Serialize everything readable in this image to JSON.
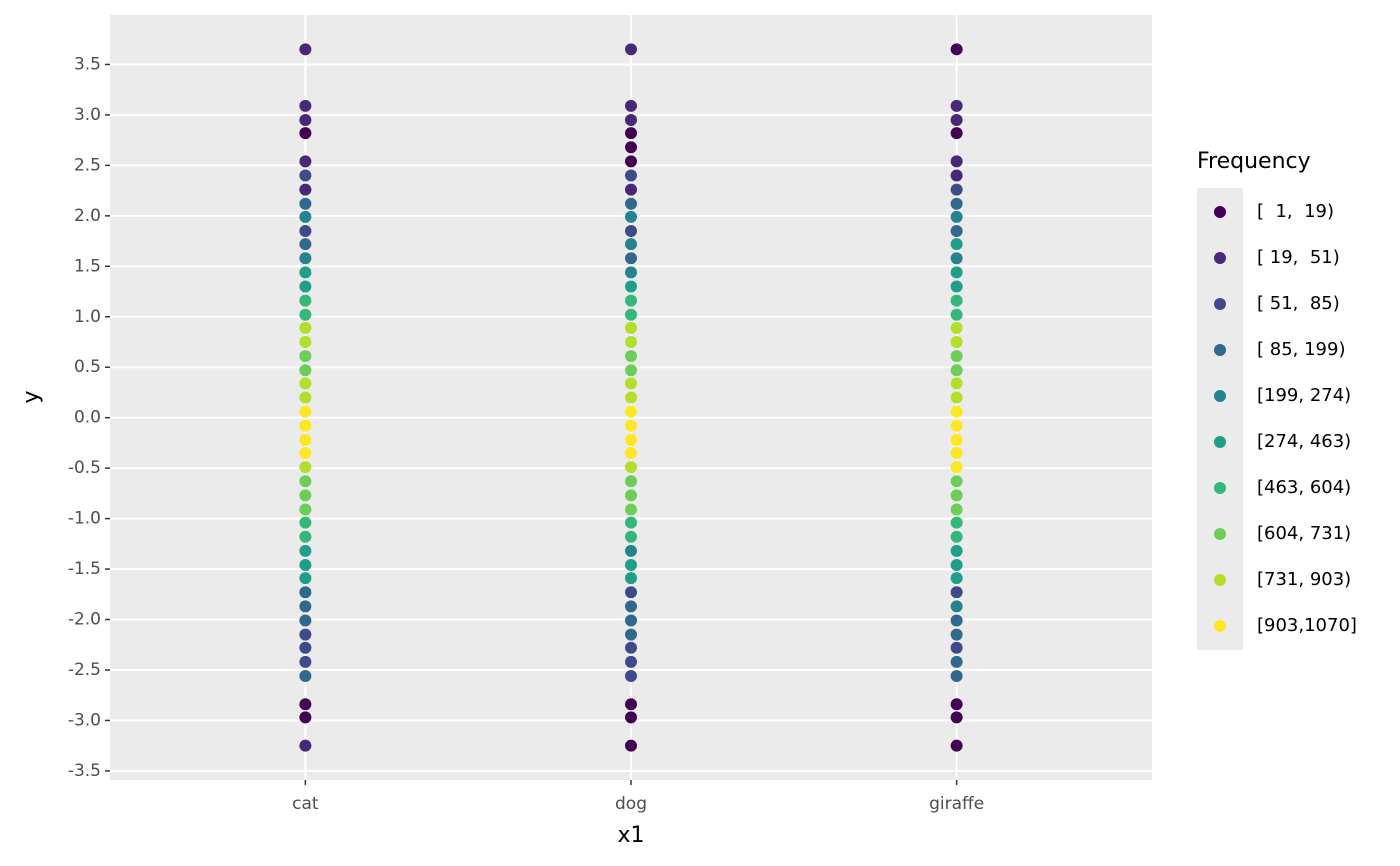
{
  "chart_data": {
    "type": "scatter",
    "xlabel": "x1",
    "ylabel": "y",
    "legend_title": "Frequency",
    "legend_position": "right",
    "categories": [
      "cat",
      "dog",
      "giraffe"
    ],
    "ylim": [
      -3.59,
      3.99
    ],
    "yticks": [
      {
        "value": -3.5,
        "label": "-3.5"
      },
      {
        "value": -3,
        "label": "-3.0"
      },
      {
        "value": -2.5,
        "label": "-2.5"
      },
      {
        "value": -2,
        "label": "-2.0"
      },
      {
        "value": -1.5,
        "label": "-1.5"
      },
      {
        "value": -1,
        "label": "-1.0"
      },
      {
        "value": -0.5,
        "label": "-0.5"
      },
      {
        "value": 0,
        "label": "0.0"
      },
      {
        "value": 0.5,
        "label": "0.5"
      },
      {
        "value": 1,
        "label": "1.0"
      },
      {
        "value": 1.5,
        "label": "1.5"
      },
      {
        "value": 2,
        "label": "2.0"
      },
      {
        "value": 2.5,
        "label": "2.5"
      },
      {
        "value": 3,
        "label": "3.0"
      },
      {
        "value": 3.5,
        "label": "3.5"
      }
    ],
    "grid": true,
    "series": [
      {
        "name": "[  1,  19)",
        "color": "#440154",
        "x": [
          "cat",
          "cat",
          "cat",
          "dog",
          "dog",
          "dog",
          "dog",
          "dog",
          "dog",
          "giraffe",
          "giraffe",
          "giraffe",
          "giraffe",
          "giraffe"
        ],
        "y": [
          2.82,
          -2.84,
          -2.97,
          2.82,
          2.68,
          2.54,
          -2.84,
          -2.97,
          -3.25,
          3.65,
          2.82,
          -2.84,
          -2.97,
          -3.25
        ]
      },
      {
        "name": "[ 19,  51)",
        "color": "#482878",
        "x": [
          "cat",
          "cat",
          "cat",
          "cat",
          "cat",
          "cat",
          "dog",
          "dog",
          "dog",
          "dog",
          "giraffe",
          "giraffe",
          "giraffe",
          "giraffe"
        ],
        "y": [
          3.65,
          3.09,
          2.95,
          2.54,
          2.26,
          -3.25,
          3.65,
          3.09,
          2.95,
          2.26,
          3.09,
          2.95,
          2.54,
          2.4
        ]
      },
      {
        "name": "[ 51,  85)",
        "color": "#3E4A89",
        "x": [
          "cat",
          "cat",
          "cat",
          "cat",
          "cat",
          "dog",
          "dog",
          "dog",
          "dog",
          "dog",
          "dog",
          "giraffe",
          "giraffe",
          "giraffe"
        ],
        "y": [
          2.4,
          1.85,
          -2.15,
          -2.28,
          -2.42,
          2.4,
          1.85,
          -1.73,
          -2.28,
          -2.42,
          -2.56,
          2.26,
          -1.73,
          -2.28
        ]
      },
      {
        "name": "[ 85, 199)",
        "color": "#31688E",
        "x": [
          "cat",
          "cat",
          "cat",
          "cat",
          "cat",
          "cat",
          "dog",
          "dog",
          "dog",
          "dog",
          "dog",
          "giraffe",
          "giraffe",
          "giraffe",
          "giraffe",
          "giraffe",
          "giraffe"
        ],
        "y": [
          2.12,
          1.72,
          -1.73,
          -1.87,
          -2.01,
          -2.56,
          2.12,
          1.58,
          -1.87,
          -2.01,
          -2.15,
          2.12,
          1.85,
          -2.01,
          -2.15,
          -2.42,
          -2.56
        ]
      },
      {
        "name": "[199, 274)",
        "color": "#26828E",
        "x": [
          "cat",
          "cat",
          "dog",
          "dog",
          "dog",
          "dog",
          "giraffe",
          "giraffe",
          "giraffe"
        ],
        "y": [
          1.99,
          1.58,
          1.99,
          1.72,
          1.44,
          -1.32,
          1.99,
          1.58,
          -1.87
        ]
      },
      {
        "name": "[274, 463)",
        "color": "#1F9E89",
        "x": [
          "cat",
          "cat",
          "cat",
          "cat",
          "cat",
          "dog",
          "dog",
          "dog",
          "giraffe",
          "giraffe",
          "giraffe",
          "giraffe",
          "giraffe",
          "giraffe"
        ],
        "y": [
          1.44,
          1.3,
          -1.32,
          -1.46,
          -1.59,
          1.3,
          -1.46,
          -1.59,
          1.72,
          1.44,
          1.3,
          -1.32,
          -1.46,
          -1.59
        ]
      },
      {
        "name": "[463, 604)",
        "color": "#35B779",
        "x": [
          "cat",
          "cat",
          "cat",
          "cat",
          "dog",
          "dog",
          "dog",
          "dog",
          "giraffe",
          "giraffe",
          "giraffe",
          "giraffe"
        ],
        "y": [
          1.16,
          1.02,
          -1.04,
          -1.18,
          1.16,
          1.02,
          -1.04,
          -1.18,
          1.16,
          1.02,
          -1.04,
          -1.18
        ]
      },
      {
        "name": "[604, 731)",
        "color": "#6DCD59",
        "x": [
          "cat",
          "cat",
          "cat",
          "cat",
          "cat",
          "dog",
          "dog",
          "dog",
          "dog",
          "dog",
          "giraffe",
          "giraffe",
          "giraffe",
          "giraffe",
          "giraffe"
        ],
        "y": [
          0.61,
          0.47,
          -0.63,
          -0.77,
          -0.91,
          0.61,
          0.47,
          -0.63,
          -0.77,
          -0.91,
          0.61,
          0.47,
          -0.63,
          -0.77,
          -0.91
        ]
      },
      {
        "name": "[731, 903)",
        "color": "#B4DE2C",
        "x": [
          "cat",
          "cat",
          "cat",
          "cat",
          "cat",
          "dog",
          "dog",
          "dog",
          "dog",
          "dog",
          "giraffe",
          "giraffe",
          "giraffe",
          "giraffe"
        ],
        "y": [
          0.89,
          0.75,
          0.34,
          0.2,
          -0.49,
          0.89,
          0.75,
          0.34,
          0.2,
          -0.49,
          0.89,
          0.75,
          0.34,
          0.2
        ]
      },
      {
        "name": "[903,1070]",
        "color": "#FDE725",
        "x": [
          "cat",
          "cat",
          "cat",
          "cat",
          "dog",
          "dog",
          "dog",
          "dog",
          "giraffe",
          "giraffe",
          "giraffe",
          "giraffe",
          "giraffe"
        ],
        "y": [
          0.06,
          -0.08,
          -0.22,
          -0.35,
          0.06,
          -0.08,
          -0.22,
          -0.35,
          0.06,
          -0.08,
          -0.22,
          -0.35,
          -0.49
        ]
      }
    ]
  }
}
